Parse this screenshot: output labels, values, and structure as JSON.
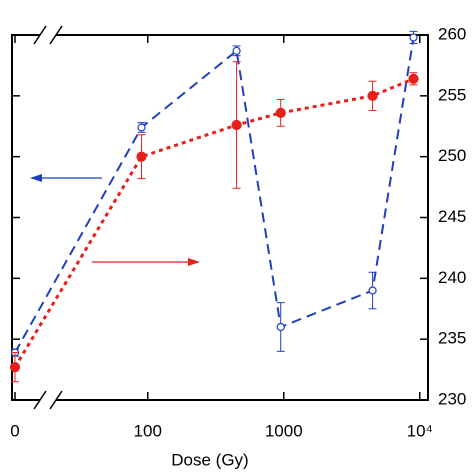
{
  "chart_data": {
    "type": "line",
    "xlabel": "Dose (Gy)",
    "xscale": "log",
    "xlim": [
      0,
      11500
    ],
    "xticks": [
      0,
      100,
      1000,
      {
        "value": 10000,
        "label": "10⁴"
      }
    ],
    "ylim": [
      230,
      260
    ],
    "yticks": [
      230,
      235,
      240,
      245,
      250,
      255,
      260
    ],
    "y2lim": [
      230,
      260
    ],
    "y2ticks": [
      230,
      235,
      240,
      245,
      250,
      255,
      260
    ],
    "x": [
      0,
      90,
      450,
      950,
      4500,
      9000
    ],
    "series": [
      {
        "color": "#1f3fbf",
        "style": "dashed",
        "marker": "open",
        "axis": "y",
        "values": [
          233.9,
          252.4,
          258.7,
          236.0,
          239.0,
          259.8
        ],
        "errors": [
          0.3,
          0.4,
          0.4,
          2.0,
          1.5,
          0.5
        ]
      },
      {
        "color": "#e8201c",
        "style": "dotted",
        "marker": "filled",
        "axis": "y2",
        "values": [
          232.7,
          250.0,
          252.6,
          253.6,
          255.0,
          256.4
        ],
        "errors": [
          1.2,
          1.8,
          5.2,
          1.1,
          1.2,
          0.5
        ]
      }
    ]
  }
}
